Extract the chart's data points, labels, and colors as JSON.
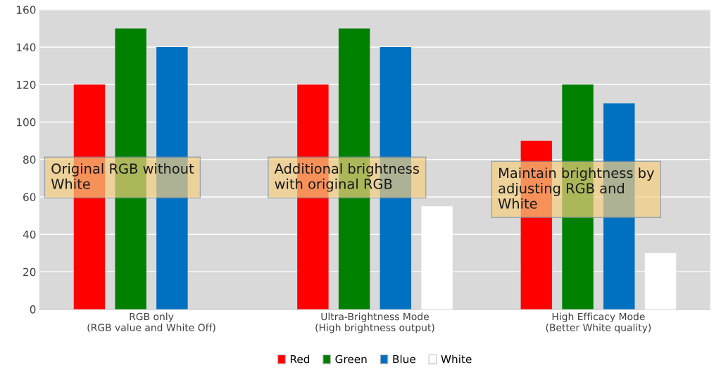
{
  "chart_data": {
    "type": "bar",
    "categories": [
      "RGB only\n(RGB value and White Off)",
      "Ultra-Brightness Mode\n(High brightness output)",
      "High Efficacy Mode\n(Better White quality)"
    ],
    "series": [
      {
        "name": "Red",
        "color": "#ff0000",
        "values": [
          120,
          120,
          90
        ]
      },
      {
        "name": "Green",
        "color": "#008000",
        "values": [
          150,
          150,
          120
        ]
      },
      {
        "name": "Blue",
        "color": "#0070c0",
        "values": [
          140,
          140,
          110
        ]
      },
      {
        "name": "White",
        "color": "#ffffff",
        "values": [
          null,
          55,
          30
        ]
      }
    ],
    "ylim": [
      0,
      160
    ],
    "yticks": [
      0,
      20,
      40,
      60,
      80,
      100,
      120,
      140,
      160
    ],
    "grid": "y",
    "legend": "bottom",
    "annotations": [
      "Original RGB without\nWhite",
      "Additional brightness\nwith original RGB",
      "Maintain brightness by\nadjusting RGB and\nWhite"
    ]
  }
}
